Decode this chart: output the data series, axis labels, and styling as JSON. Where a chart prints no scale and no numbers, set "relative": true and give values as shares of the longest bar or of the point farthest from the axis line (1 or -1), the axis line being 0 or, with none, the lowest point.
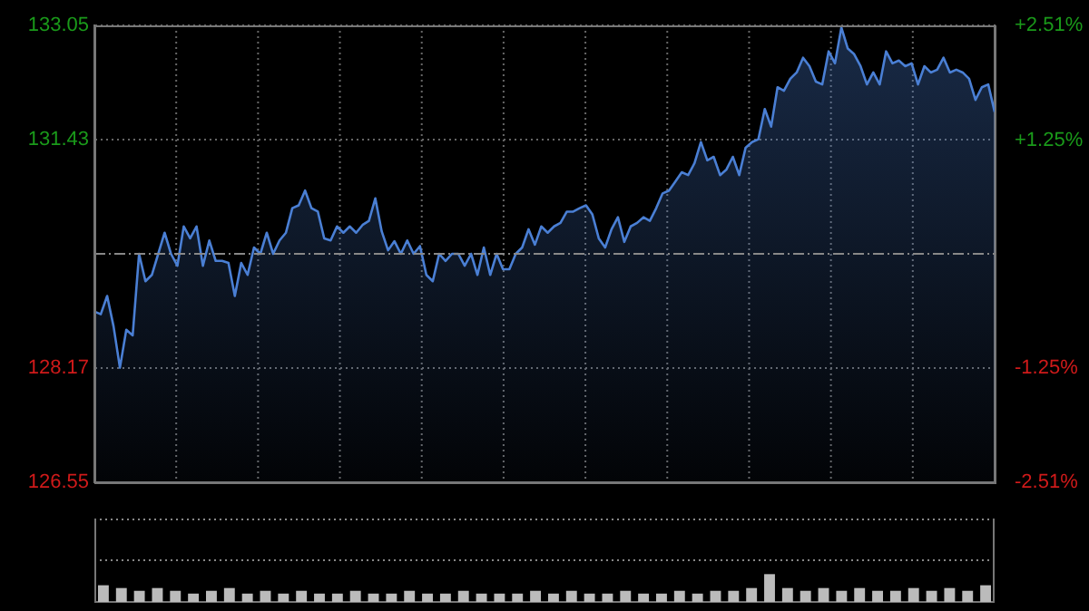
{
  "chart_data": [
    {
      "type": "area",
      "color": "#4a7fd4",
      "grid": true,
      "legend": false,
      "line_style": "solid",
      "marker": "none",
      "categories": [
        null,
        null,
        null,
        null,
        null,
        null,
        null,
        null,
        null,
        null,
        null,
        null,
        null,
        null,
        null,
        null,
        null,
        null,
        null,
        null,
        null,
        null,
        null,
        null,
        null,
        null,
        null,
        null,
        null,
        null,
        null,
        null,
        null,
        null,
        null,
        null,
        null,
        null,
        null,
        null,
        null,
        null,
        null,
        null,
        null,
        null,
        null,
        null,
        null,
        null,
        null,
        null,
        null,
        null,
        null,
        null,
        null,
        null,
        null,
        null,
        null,
        null,
        null,
        null,
        null,
        null,
        null,
        null,
        null,
        null,
        null,
        null,
        null,
        null,
        null,
        null,
        null,
        null,
        null,
        null,
        null,
        null,
        null,
        null,
        null,
        null,
        null,
        null,
        null,
        null,
        null,
        null,
        null,
        null,
        null,
        null,
        null,
        null,
        null,
        null,
        null,
        null,
        null,
        null,
        null,
        null,
        null,
        null,
        null,
        null,
        null,
        null,
        null,
        null,
        null,
        null,
        null,
        null,
        null,
        null,
        null,
        null,
        null,
        null,
        null,
        null,
        null,
        null,
        null,
        null,
        null,
        null,
        null,
        null,
        null,
        null,
        null,
        null,
        null,
        null,
        null,
        null
      ],
      "ylim": [
        126.55,
        133.05
      ],
      "yticks": [
        126.55,
        128.17,
        131.43,
        133.05
      ],
      "y2lim": [
        -2.51,
        2.51
      ],
      "y2ticks": [
        {
          "value": -2.51,
          "label": "-2.51%"
        },
        {
          "value": -1.25,
          "label": "-1.25%"
        },
        {
          "value": 1.25,
          "label": "+1.25%"
        },
        {
          "value": 2.51,
          "label": "+2.51%"
        }
      ],
      "ref_lines": [
        {
          "axis": "y",
          "value": 129.8,
          "line_style": "dashed"
        }
      ],
      "values": [
        128.98,
        128.94,
        129.2,
        128.77,
        128.18,
        128.72,
        128.64,
        129.8,
        129.41,
        129.5,
        129.8,
        130.1,
        129.8,
        129.63,
        130.19,
        130.02,
        130.19,
        129.63,
        129.99,
        129.7,
        129.7,
        129.67,
        129.2,
        129.67,
        129.5,
        129.89,
        129.8,
        130.1,
        129.8,
        129.99,
        130.1,
        130.45,
        130.49,
        130.7,
        130.45,
        130.4,
        130.02,
        129.99,
        130.19,
        130.1,
        130.19,
        130.1,
        130.21,
        130.27,
        130.59,
        130.12,
        129.85,
        129.98,
        129.8,
        129.99,
        129.8,
        129.91,
        129.5,
        129.41,
        129.8,
        129.7,
        129.8,
        129.8,
        129.63,
        129.8,
        129.5,
        129.89,
        129.5,
        129.8,
        129.58,
        129.58,
        129.8,
        129.89,
        130.15,
        129.93,
        130.19,
        130.1,
        130.19,
        130.24,
        130.4,
        130.4,
        130.45,
        130.49,
        130.36,
        130.02,
        129.89,
        130.15,
        130.32,
        129.97,
        130.19,
        130.24,
        130.32,
        130.27,
        130.45,
        130.66,
        130.7,
        130.83,
        130.96,
        130.92,
        131.09,
        131.39,
        131.13,
        131.18,
        130.92,
        131.0,
        131.18,
        130.92,
        131.31,
        131.39,
        131.43,
        131.86,
        131.61,
        132.17,
        132.12,
        132.29,
        132.38,
        132.59,
        132.47,
        132.25,
        132.21,
        132.68,
        132.51,
        133.02,
        132.72,
        132.64,
        132.47,
        132.21,
        132.38,
        132.21,
        132.68,
        132.51,
        132.55,
        132.47,
        132.51,
        132.21,
        132.47,
        132.38,
        132.42,
        132.59,
        132.38,
        132.42,
        132.38,
        132.29,
        131.99,
        132.17,
        132.21,
        131.82
      ]
    },
    {
      "type": "bar",
      "relative": true,
      "color": "#bbbbbb",
      "categories": [
        null,
        null,
        null,
        null,
        null,
        null,
        null,
        null,
        null,
        null,
        null,
        null,
        null,
        null,
        null,
        null,
        null,
        null,
        null,
        null,
        null,
        null,
        null,
        null,
        null,
        null,
        null,
        null,
        null,
        null,
        null,
        null,
        null,
        null,
        null,
        null,
        null,
        null,
        null,
        null,
        null,
        null,
        null,
        null,
        null,
        null,
        null,
        null,
        null,
        null
      ],
      "values": [
        0.6,
        0.5,
        0.4,
        0.5,
        0.4,
        0.3,
        0.4,
        0.5,
        0.3,
        0.4,
        0.3,
        0.4,
        0.3,
        0.3,
        0.4,
        0.3,
        0.3,
        0.4,
        0.3,
        0.3,
        0.4,
        0.3,
        0.3,
        0.3,
        0.4,
        0.3,
        0.4,
        0.3,
        0.3,
        0.4,
        0.3,
        0.3,
        0.4,
        0.3,
        0.4,
        0.4,
        0.5,
        1,
        0.5,
        0.4,
        0.5,
        0.4,
        0.5,
        0.4,
        0.4,
        0.5,
        0.4,
        0.5,
        0.4,
        0.6
      ]
    }
  ]
}
